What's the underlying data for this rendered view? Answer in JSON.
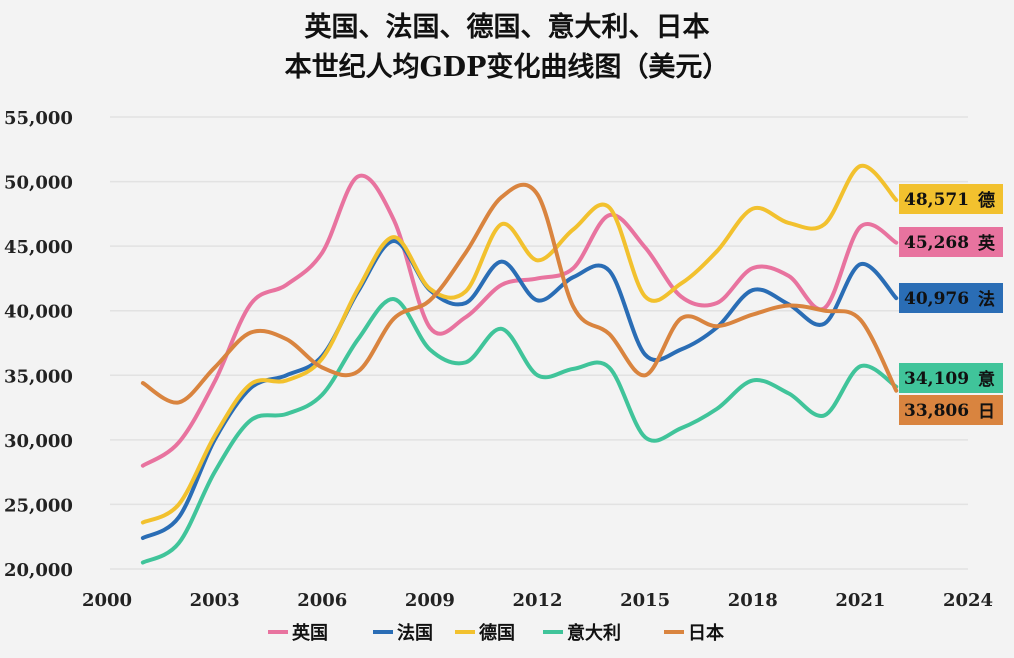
{
  "chart_data": {
    "type": "line",
    "title": [
      "英国、法国、德国、意大利、日本",
      "本世纪人均GDP变化曲线图（美元）"
    ],
    "xlabel": "",
    "ylabel": "",
    "xlim": [
      2000,
      2024
    ],
    "ylim": [
      20000,
      55000
    ],
    "x_ticks": [
      "2000",
      "2003",
      "2006",
      "2009",
      "2012",
      "2015",
      "2018",
      "2021",
      "2024"
    ],
    "y_ticks": [
      "20,000",
      "25,000",
      "30,000",
      "35,000",
      "40,000",
      "45,000",
      "50,000",
      "55,000"
    ],
    "grid": "horizontal",
    "legend_position": "bottom",
    "x": [
      2001,
      2002,
      2003,
      2004,
      2005,
      2006,
      2007,
      2008,
      2009,
      2010,
      2011,
      2012,
      2013,
      2014,
      2015,
      2016,
      2017,
      2018,
      2019,
      2020,
      2021,
      2022
    ],
    "series": [
      {
        "name": "英国",
        "short": "英",
        "color": "#e8739f",
        "end_label": "45,268",
        "values": [
          28000,
          29800,
          34500,
          40500,
          42000,
          44500,
          50400,
          47000,
          38700,
          39500,
          42000,
          42500,
          43300,
          47400,
          44900,
          41100,
          40600,
          43300,
          42700,
          40200,
          46500,
          45268
        ]
      },
      {
        "name": "法国",
        "short": "法",
        "color": "#2a6db5",
        "end_label": "40,976",
        "values": [
          22400,
          24000,
          30000,
          34000,
          35000,
          36500,
          41500,
          45400,
          41600,
          40600,
          43800,
          40800,
          42600,
          43100,
          36600,
          37000,
          38700,
          41600,
          40500,
          39000,
          43600,
          40976
        ]
      },
      {
        "name": "德国",
        "short": "德",
        "color": "#f2c12e",
        "end_label": "48,571",
        "values": [
          23600,
          25000,
          30300,
          34300,
          34600,
          36300,
          41700,
          45700,
          41700,
          41500,
          46700,
          43900,
          46300,
          48000,
          41100,
          42100,
          44600,
          47900,
          46800,
          46700,
          51200,
          48571
        ]
      },
      {
        "name": "意大利",
        "short": "意",
        "color": "#40c49a",
        "end_label": "34,109",
        "values": [
          20500,
          22000,
          27500,
          31500,
          32000,
          33500,
          37800,
          40900,
          37000,
          36000,
          38600,
          35000,
          35500,
          35600,
          30200,
          30900,
          32400,
          34600,
          33600,
          31900,
          35700,
          34109
        ]
      },
      {
        "name": "日本",
        "short": "日",
        "color": "#d9843f",
        "end_label": "33,806",
        "values": [
          34400,
          32900,
          35600,
          38300,
          37800,
          35600,
          35300,
          39400,
          40800,
          44500,
          48800,
          49000,
          40300,
          38200,
          35000,
          39400,
          38800,
          39700,
          40400,
          40000,
          39300,
          33806
        ]
      }
    ]
  }
}
